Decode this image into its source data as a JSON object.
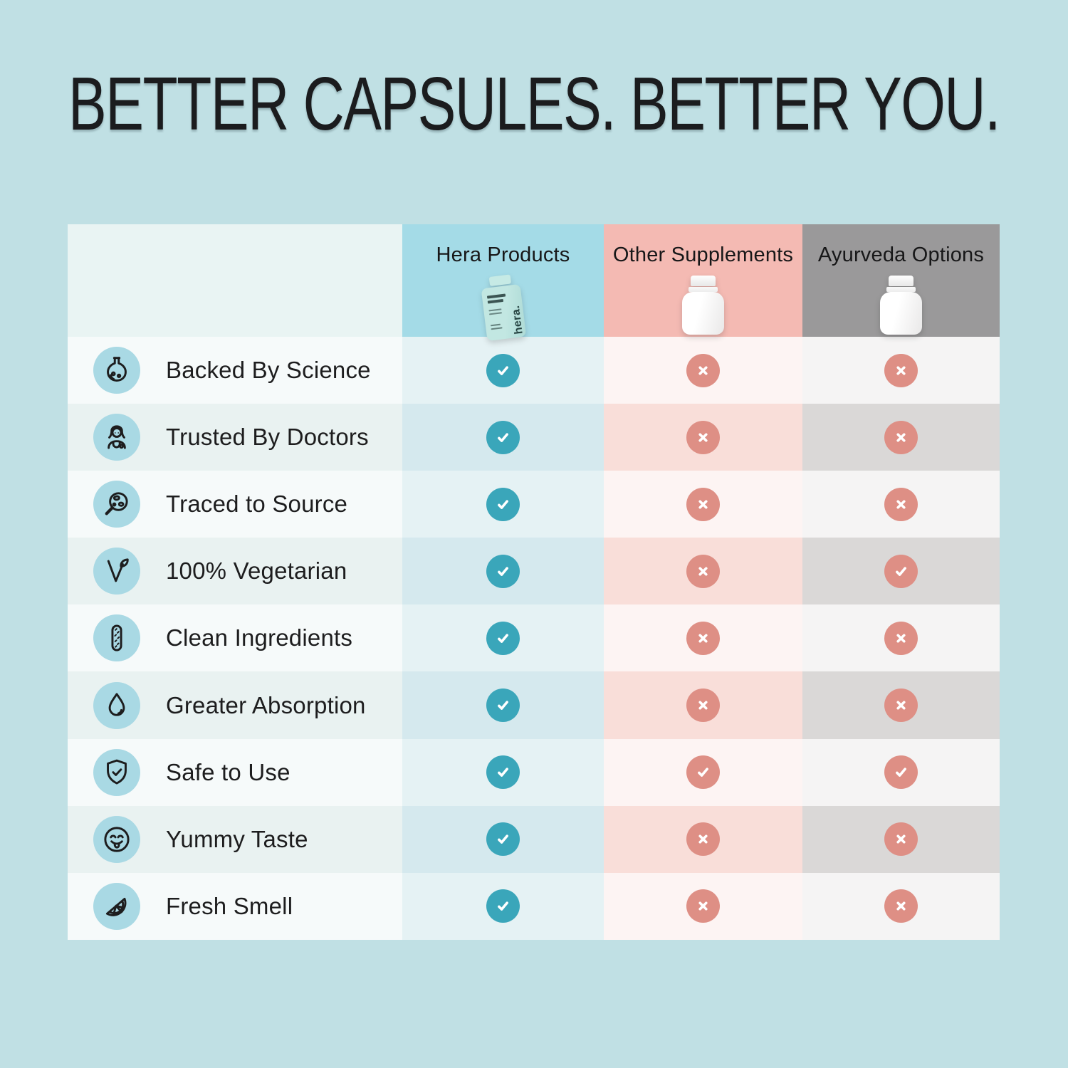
{
  "page": {
    "title": "BETTER CAPSULES. BETTER YOU."
  },
  "theme": {
    "page_bg": "#c0e0e4",
    "title_color": "#1b1c1e",
    "text": "#1d1d1e",
    "label_header_bg": "#e9f4f3",
    "hera_header_bg": "#a4dbe7",
    "other_header_bg": "#f4bab3",
    "ayur_header_bg": "#9a999a",
    "label_odd": "#f6fafa",
    "label_alt": "#e9f2f1",
    "hera_odd": "#e5f2f4",
    "hera_alt": "#d5e9ee",
    "other_odd": "#fdf4f3",
    "other_alt": "#f9ded9",
    "ayur_odd": "#f5f4f4",
    "ayur_alt": "#dad8d7",
    "check_teal": "#3aa6ba",
    "mark_pink": "#de8f85",
    "icon_bg": "#a9d9e4",
    "icon_stroke": "#1d1d1e"
  },
  "table": {
    "columns": [
      {
        "label": "Hera Products",
        "bottle": "hera-bottle",
        "mark_style": "teal"
      },
      {
        "label": "Other Supplements",
        "bottle": "white-bottle",
        "mark_style": "pink"
      },
      {
        "label": "Ayurveda Options",
        "bottle": "white-bottle",
        "mark_style": "pink"
      }
    ],
    "hera_bottle_brand": "hera.",
    "rows": [
      {
        "label": "Backed By Science",
        "icon": "flask-icon",
        "values": [
          "check",
          "cross",
          "cross"
        ]
      },
      {
        "label": "Trusted By Doctors",
        "icon": "doctor-icon",
        "values": [
          "check",
          "cross",
          "cross"
        ]
      },
      {
        "label": "Traced to Source",
        "icon": "magnifier-globe-icon",
        "values": [
          "check",
          "cross",
          "cross"
        ]
      },
      {
        "label": "100% Vegetarian",
        "icon": "leaf-icon",
        "values": [
          "check",
          "cross",
          "check"
        ]
      },
      {
        "label": "Clean Ingredients",
        "icon": "capsule-icon",
        "values": [
          "check",
          "cross",
          "cross"
        ]
      },
      {
        "label": "Greater Absorption",
        "icon": "water-drop-icon",
        "values": [
          "check",
          "cross",
          "cross"
        ]
      },
      {
        "label": "Safe to Use",
        "icon": "shield-check-icon",
        "values": [
          "check",
          "check",
          "check"
        ]
      },
      {
        "label": "Yummy Taste",
        "icon": "smiley-tongue-icon",
        "values": [
          "check",
          "cross",
          "cross"
        ]
      },
      {
        "label": "Fresh Smell",
        "icon": "citrus-slice-icon",
        "values": [
          "check",
          "cross",
          "cross"
        ]
      }
    ]
  },
  "chart_data": {
    "type": "table",
    "title": "BETTER CAPSULES. BETTER YOU.",
    "columns": [
      "Hera Products",
      "Other Supplements",
      "Ayurveda Options"
    ],
    "rows": [
      "Backed By Science",
      "Trusted By Doctors",
      "Traced to Source",
      "100% Vegetarian",
      "Clean Ingredients",
      "Greater Absorption",
      "Safe to Use",
      "Yummy Taste",
      "Fresh Smell"
    ],
    "values": [
      [
        "check",
        "cross",
        "cross"
      ],
      [
        "check",
        "cross",
        "cross"
      ],
      [
        "check",
        "cross",
        "cross"
      ],
      [
        "check",
        "cross",
        "check"
      ],
      [
        "check",
        "cross",
        "cross"
      ],
      [
        "check",
        "cross",
        "cross"
      ],
      [
        "check",
        "check",
        "check"
      ],
      [
        "check",
        "cross",
        "cross"
      ],
      [
        "check",
        "cross",
        "cross"
      ]
    ]
  }
}
